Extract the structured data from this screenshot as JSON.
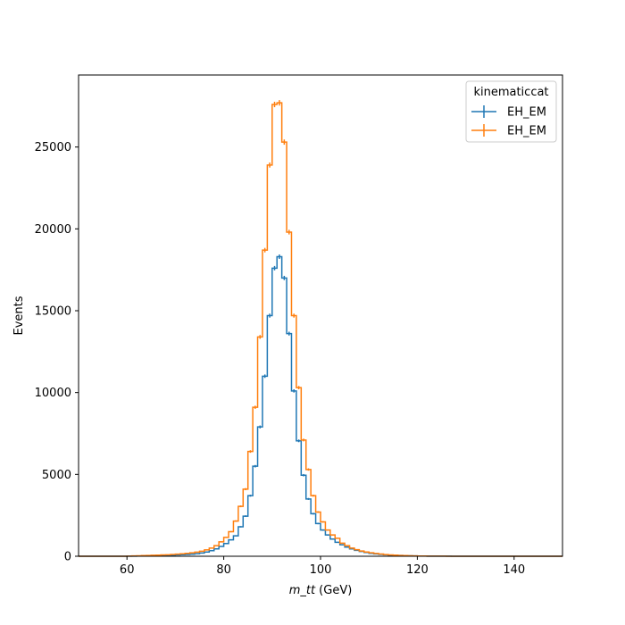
{
  "chart_data": {
    "type": "histogram",
    "xlabel": "m_tt",
    "xlabel_unit": " (GeV)",
    "ylabel": "Events",
    "xlim": [
      50,
      150
    ],
    "ylim": [
      0,
      29400
    ],
    "xticks": [
      60,
      80,
      100,
      120,
      140
    ],
    "yticks": [
      0,
      5000,
      10000,
      15000,
      20000,
      25000
    ],
    "grid": false,
    "legend": {
      "title": "kinematiccat",
      "placement": "top-right"
    },
    "bin_edges": [
      50,
      51,
      52,
      53,
      54,
      55,
      56,
      57,
      58,
      59,
      60,
      61,
      62,
      63,
      64,
      65,
      66,
      67,
      68,
      69,
      70,
      71,
      72,
      73,
      74,
      75,
      76,
      77,
      78,
      79,
      80,
      81,
      82,
      83,
      84,
      85,
      86,
      87,
      88,
      89,
      90,
      91,
      92,
      93,
      94,
      95,
      96,
      97,
      98,
      99,
      100,
      101,
      102,
      103,
      104,
      105,
      106,
      107,
      108,
      109,
      110,
      111,
      112,
      113,
      114,
      115,
      116,
      117,
      118,
      119,
      120,
      121,
      122,
      123,
      124,
      125,
      126,
      127,
      128,
      129,
      130,
      131,
      132,
      133,
      134,
      135,
      136,
      137,
      138,
      139,
      140,
      141,
      142,
      143,
      144,
      145,
      146,
      147,
      148,
      149,
      150
    ],
    "series": [
      {
        "name": "EH_EM",
        "color": "#1f77b4",
        "values": [
          0,
          0,
          0,
          0,
          0,
          0,
          0,
          0,
          0,
          0,
          5,
          10,
          15,
          20,
          25,
          30,
          35,
          45,
          55,
          65,
          80,
          95,
          110,
          130,
          160,
          200,
          260,
          340,
          450,
          600,
          780,
          1000,
          1250,
          1800,
          2450,
          3700,
          5500,
          7900,
          11000,
          14700,
          17600,
          18300,
          17000,
          13600,
          10100,
          7050,
          4950,
          3500,
          2600,
          2000,
          1600,
          1300,
          1050,
          850,
          700,
          560,
          450,
          360,
          290,
          230,
          180,
          145,
          115,
          90,
          70,
          55,
          45,
          35,
          25,
          20,
          15,
          12,
          10,
          8,
          6,
          5,
          4,
          3,
          2,
          2,
          1,
          1,
          1,
          0,
          0,
          0,
          0,
          0,
          0,
          0,
          0,
          0,
          0,
          0,
          0,
          0,
          0,
          0,
          0,
          0
        ]
      },
      {
        "name": "EH_EM",
        "color": "#ff7f0e",
        "values": [
          0,
          0,
          0,
          0,
          0,
          0,
          0,
          0,
          0,
          0,
          10,
          20,
          30,
          40,
          50,
          60,
          70,
          80,
          90,
          110,
          130,
          150,
          180,
          210,
          250,
          310,
          390,
          500,
          650,
          880,
          1150,
          1500,
          2150,
          3050,
          4100,
          6400,
          9100,
          13400,
          18700,
          23900,
          27600,
          27700,
          25300,
          19800,
          14700,
          10300,
          7100,
          5300,
          3700,
          2700,
          2100,
          1600,
          1300,
          1100,
          800,
          650,
          500,
          400,
          320,
          260,
          210,
          170,
          135,
          105,
          80,
          65,
          50,
          40,
          30,
          22,
          16,
          12,
          9,
          7,
          5,
          4,
          3,
          2,
          2,
          1,
          1,
          0,
          0,
          0,
          0,
          0,
          0,
          0,
          0,
          0,
          0,
          0,
          0,
          0,
          0,
          0,
          0,
          0,
          0,
          0
        ]
      }
    ]
  }
}
